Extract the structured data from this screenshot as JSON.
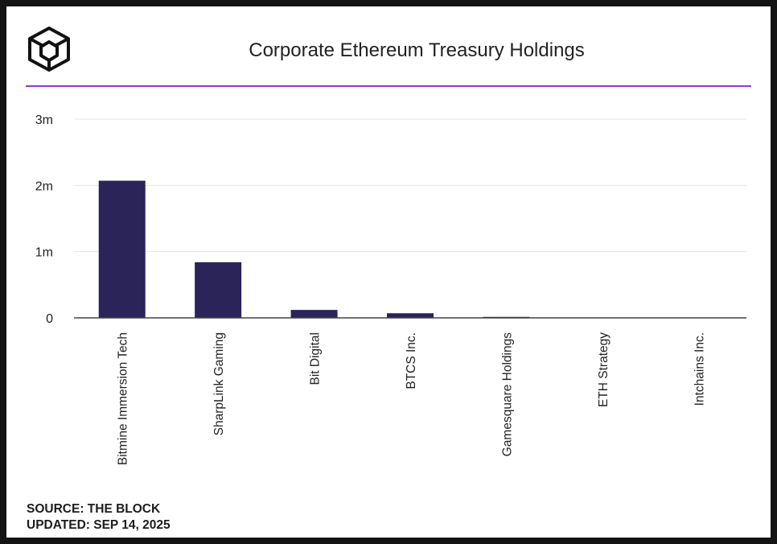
{
  "header": {
    "title": "Corporate Ethereum Treasury Holdings",
    "logo_icon": "the-block-cube-logo"
  },
  "colors": {
    "accent_rule": "#9b35d6",
    "bar": "#2a2459",
    "grid": "#e6e6e6",
    "axis": "#444444",
    "text": "#222222",
    "frame": "#141414"
  },
  "footer": {
    "source": "SOURCE: THE BLOCK",
    "updated": "UPDATED: SEP 14, 2025"
  },
  "chart_data": {
    "type": "bar",
    "title": "Corporate Ethereum Treasury Holdings",
    "xlabel": "",
    "ylabel": "",
    "categories": [
      "Bitmine Immersion Tech",
      "SharpLink Gaming",
      "Bit Digital",
      "BTCS Inc.",
      "Gamesquare Holdings",
      "ETH Strategy",
      "Intchains Inc."
    ],
    "values": [
      2070000,
      840000,
      120000,
      70000,
      15000,
      5000,
      1000
    ],
    "ylim": [
      0,
      3000000
    ],
    "yticks": [
      0,
      1000000,
      2000000,
      3000000
    ],
    "ytick_labels": [
      "0",
      "1m",
      "2m",
      "3m"
    ],
    "grid": true,
    "legend": "none"
  }
}
